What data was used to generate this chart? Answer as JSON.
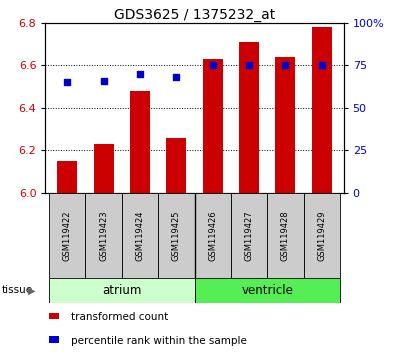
{
  "title": "GDS3625 / 1375232_at",
  "samples": [
    "GSM119422",
    "GSM119423",
    "GSM119424",
    "GSM119425",
    "GSM119426",
    "GSM119427",
    "GSM119428",
    "GSM119429"
  ],
  "transformed_count": [
    6.15,
    6.23,
    6.48,
    6.26,
    6.63,
    6.71,
    6.64,
    6.78
  ],
  "percentile_rank": [
    65,
    66,
    70,
    68,
    75,
    75,
    75,
    75
  ],
  "ylim_left": [
    6.0,
    6.8
  ],
  "ylim_right": [
    0,
    100
  ],
  "yticks_left": [
    6.0,
    6.2,
    6.4,
    6.6,
    6.8
  ],
  "yticks_right": [
    0,
    25,
    50,
    75,
    100
  ],
  "ytick_labels_right": [
    "0",
    "25",
    "50",
    "75",
    "100%"
  ],
  "bar_color": "#cc0000",
  "dot_color": "#0000cc",
  "bar_bottom": 6.0,
  "tissue_groups": [
    {
      "label": "atrium",
      "indices": [
        0,
        1,
        2,
        3
      ],
      "color": "#ccffcc"
    },
    {
      "label": "ventricle",
      "indices": [
        4,
        5,
        6,
        7
      ],
      "color": "#55ee55"
    }
  ],
  "tissue_label": "tissue",
  "legend_bar_label": "transformed count",
  "legend_dot_label": "percentile rank within the sample",
  "background_color": "#ffffff",
  "tick_label_color_left": "#cc0000",
  "tick_label_color_right": "#0000cc",
  "sample_box_color": "#cccccc",
  "bar_width": 0.55
}
